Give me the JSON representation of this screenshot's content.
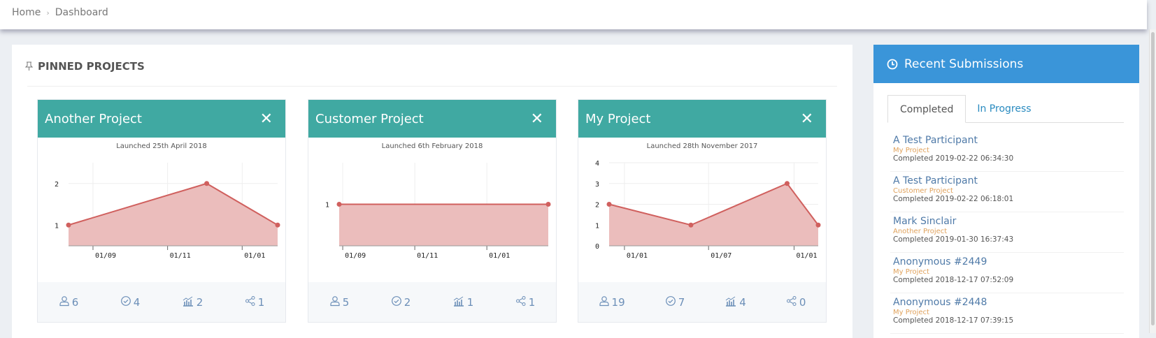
{
  "breadcrumb": {
    "items": [
      "Home",
      "Dashboard"
    ]
  },
  "pinned": {
    "title": "PINNED PROJECTS",
    "icon": "pin-icon"
  },
  "colors": {
    "card_header": "#40a9a2",
    "panel_header": "#3a95d9",
    "line": "#d0605e",
    "fill": "#ebbdbc",
    "project_text": "#e0a25c",
    "name_text": "#4f7aa8"
  },
  "projects": [
    {
      "name": "Another Project",
      "launched": "Launched 25th April 2018",
      "stats": {
        "participants": "6",
        "completed": "4",
        "reports": "2",
        "shares": "1"
      }
    },
    {
      "name": "Customer Project",
      "launched": "Launched 6th February 2018",
      "stats": {
        "participants": "5",
        "completed": "2",
        "reports": "1",
        "shares": "1"
      }
    },
    {
      "name": "My Project",
      "launched": "Launched 28th November 2017",
      "stats": {
        "participants": "19",
        "completed": "7",
        "reports": "4",
        "shares": "0"
      }
    }
  ],
  "chart_data": [
    {
      "type": "area",
      "x": [
        "2018-08-12",
        "2018-12-03",
        "2019-01-30"
      ],
      "values": [
        1,
        2,
        1
      ],
      "ylim": [
        0.5,
        2.5
      ],
      "yticks": [
        1,
        2
      ],
      "xticks": [
        {
          "date": "2018-09-01",
          "label": "01/09"
        },
        {
          "date": "2018-11-01",
          "label": "01/11"
        },
        {
          "date": "2019-01-01",
          "label": "01/01"
        }
      ],
      "grid": true
    },
    {
      "type": "area",
      "x": [
        "2018-08-29",
        "2019-02-22"
      ],
      "values": [
        1,
        1
      ],
      "ylim": [
        0.5,
        1.5
      ],
      "yticks": [
        1
      ],
      "xticks": [
        {
          "date": "2018-09-01",
          "label": "01/09"
        },
        {
          "date": "2018-11-01",
          "label": "01/11"
        },
        {
          "date": "2019-01-01",
          "label": "01/01"
        }
      ],
      "grid": true
    },
    {
      "type": "area",
      "x": [
        "2017-11-29",
        "2018-05-24",
        "2018-12-17",
        "2019-02-22"
      ],
      "values": [
        2,
        1,
        3,
        1
      ],
      "ylim": [
        0,
        4
      ],
      "yticks": [
        0,
        1,
        2,
        3,
        4
      ],
      "xticks": [
        {
          "date": "2018-01-01",
          "label": "01/01"
        },
        {
          "date": "2018-07-01",
          "label": "01/07"
        },
        {
          "date": "2019-01-01",
          "label": "01/01"
        }
      ],
      "grid": true
    }
  ],
  "recent": {
    "title": "Recent Submissions",
    "icon": "clock-icon",
    "tabs": [
      {
        "label": "Completed",
        "active": true
      },
      {
        "label": "In Progress",
        "active": false
      }
    ],
    "items": [
      {
        "name": "A Test Participant",
        "project": "My Project",
        "time": "Completed 2019-02-22 06:34:30"
      },
      {
        "name": "A Test Participant",
        "project": "Customer Project",
        "time": "Completed 2019-02-22 06:18:01"
      },
      {
        "name": "Mark Sinclair",
        "project": "Another Project",
        "time": "Completed 2019-01-30 16:37:43"
      },
      {
        "name": "Anonymous #2449",
        "project": "My Project",
        "time": "Completed 2018-12-17 07:52:09"
      },
      {
        "name": "Anonymous #2448",
        "project": "My Project",
        "time": "Completed 2018-12-17 07:39:15"
      }
    ]
  }
}
